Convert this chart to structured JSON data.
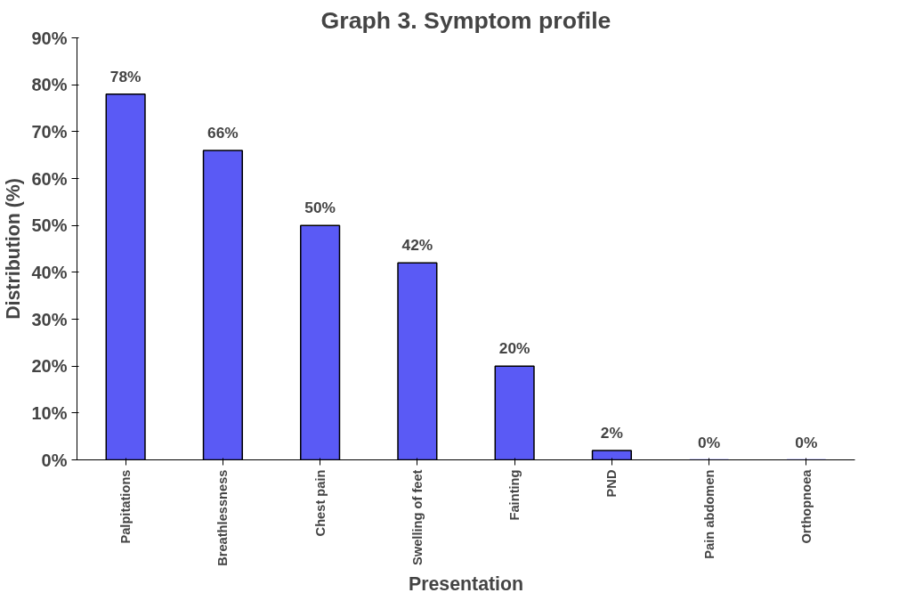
{
  "chart_data": {
    "type": "bar",
    "title": "Graph 3. Symptom profile",
    "xlabel": "Presentation",
    "ylabel": "Distribution (%)",
    "categories": [
      "Palpitations",
      "Breathlessness",
      "Chest pain",
      "Swelling of feet",
      "Fainting",
      "PND",
      "Pain abdomen",
      "Orthopnoea"
    ],
    "values": [
      78,
      66,
      50,
      42,
      20,
      2,
      0,
      0
    ],
    "value_labels": [
      "78%",
      "66%",
      "50%",
      "42%",
      "20%",
      "2%",
      "0%",
      "0%"
    ],
    "color": "#5a5af5",
    "ylim": [
      0,
      90
    ],
    "yticks": [
      {
        "value": 0,
        "label": "0%"
      },
      {
        "value": 10,
        "label": "10%"
      },
      {
        "value": 20,
        "label": "20%"
      },
      {
        "value": 30,
        "label": "30%"
      },
      {
        "value": 40,
        "label": "40%"
      },
      {
        "value": 50,
        "label": "50%"
      },
      {
        "value": 60,
        "label": "60%"
      },
      {
        "value": 70,
        "label": "70%"
      },
      {
        "value": 80,
        "label": "80%"
      },
      {
        "value": 90,
        "label": "90%"
      }
    ],
    "grid": false
  }
}
